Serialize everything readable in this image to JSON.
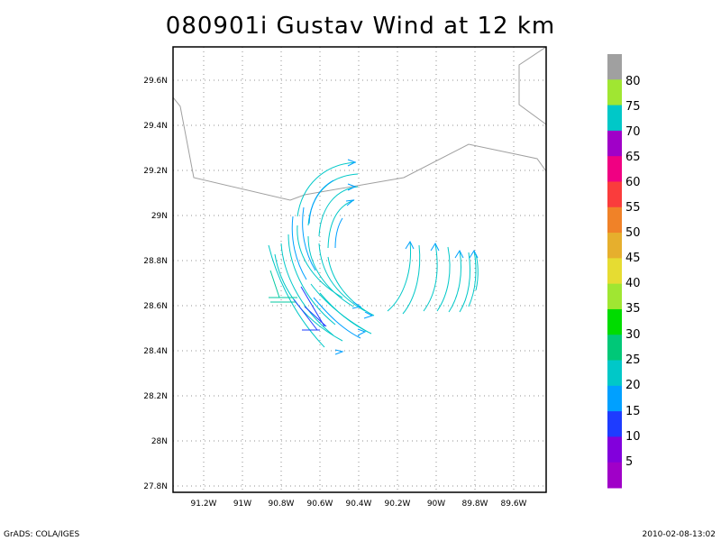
{
  "title": "080901i Gustav Wind at 12 km",
  "footer": {
    "left": "GrADS: COLA/IGES",
    "right": "2010-02-08-13:02"
  },
  "map": {
    "lat_labels": [
      "29.6N",
      "29.4N",
      "29.2N",
      "29N",
      "28.8N",
      "28.6N",
      "28.4N",
      "28.2N",
      "28N",
      "27.8N"
    ],
    "lon_labels": [
      "91.2W",
      "91W",
      "90.8W",
      "90.6W",
      "90.4W",
      "90.2W",
      "90W",
      "89.8W",
      "89.6W"
    ],
    "grid": "dotted",
    "coastline_color": "#a0a0a0"
  },
  "colorbar": {
    "labels": [
      "80",
      "75",
      "70",
      "65",
      "60",
      "55",
      "50",
      "45",
      "40",
      "35",
      "30",
      "25",
      "20",
      "15",
      "10",
      "5"
    ],
    "colors": [
      "#a0a0a0",
      "#a0e632",
      "#00c8c8",
      "#a000c8",
      "#f00082",
      "#fa3c3c",
      "#f08228",
      "#e6af2d",
      "#e6dc32",
      "#a0e632",
      "#00dc00",
      "#00c878",
      "#00c8c8",
      "#00a0ff",
      "#1e3cff",
      "#8200dc",
      "#a000c8"
    ]
  },
  "wind_colors": {
    "cyan": "#00c8c8",
    "light_blue": "#00a0ff",
    "teal": "#00c8a0",
    "blue": "#1e3cff"
  }
}
